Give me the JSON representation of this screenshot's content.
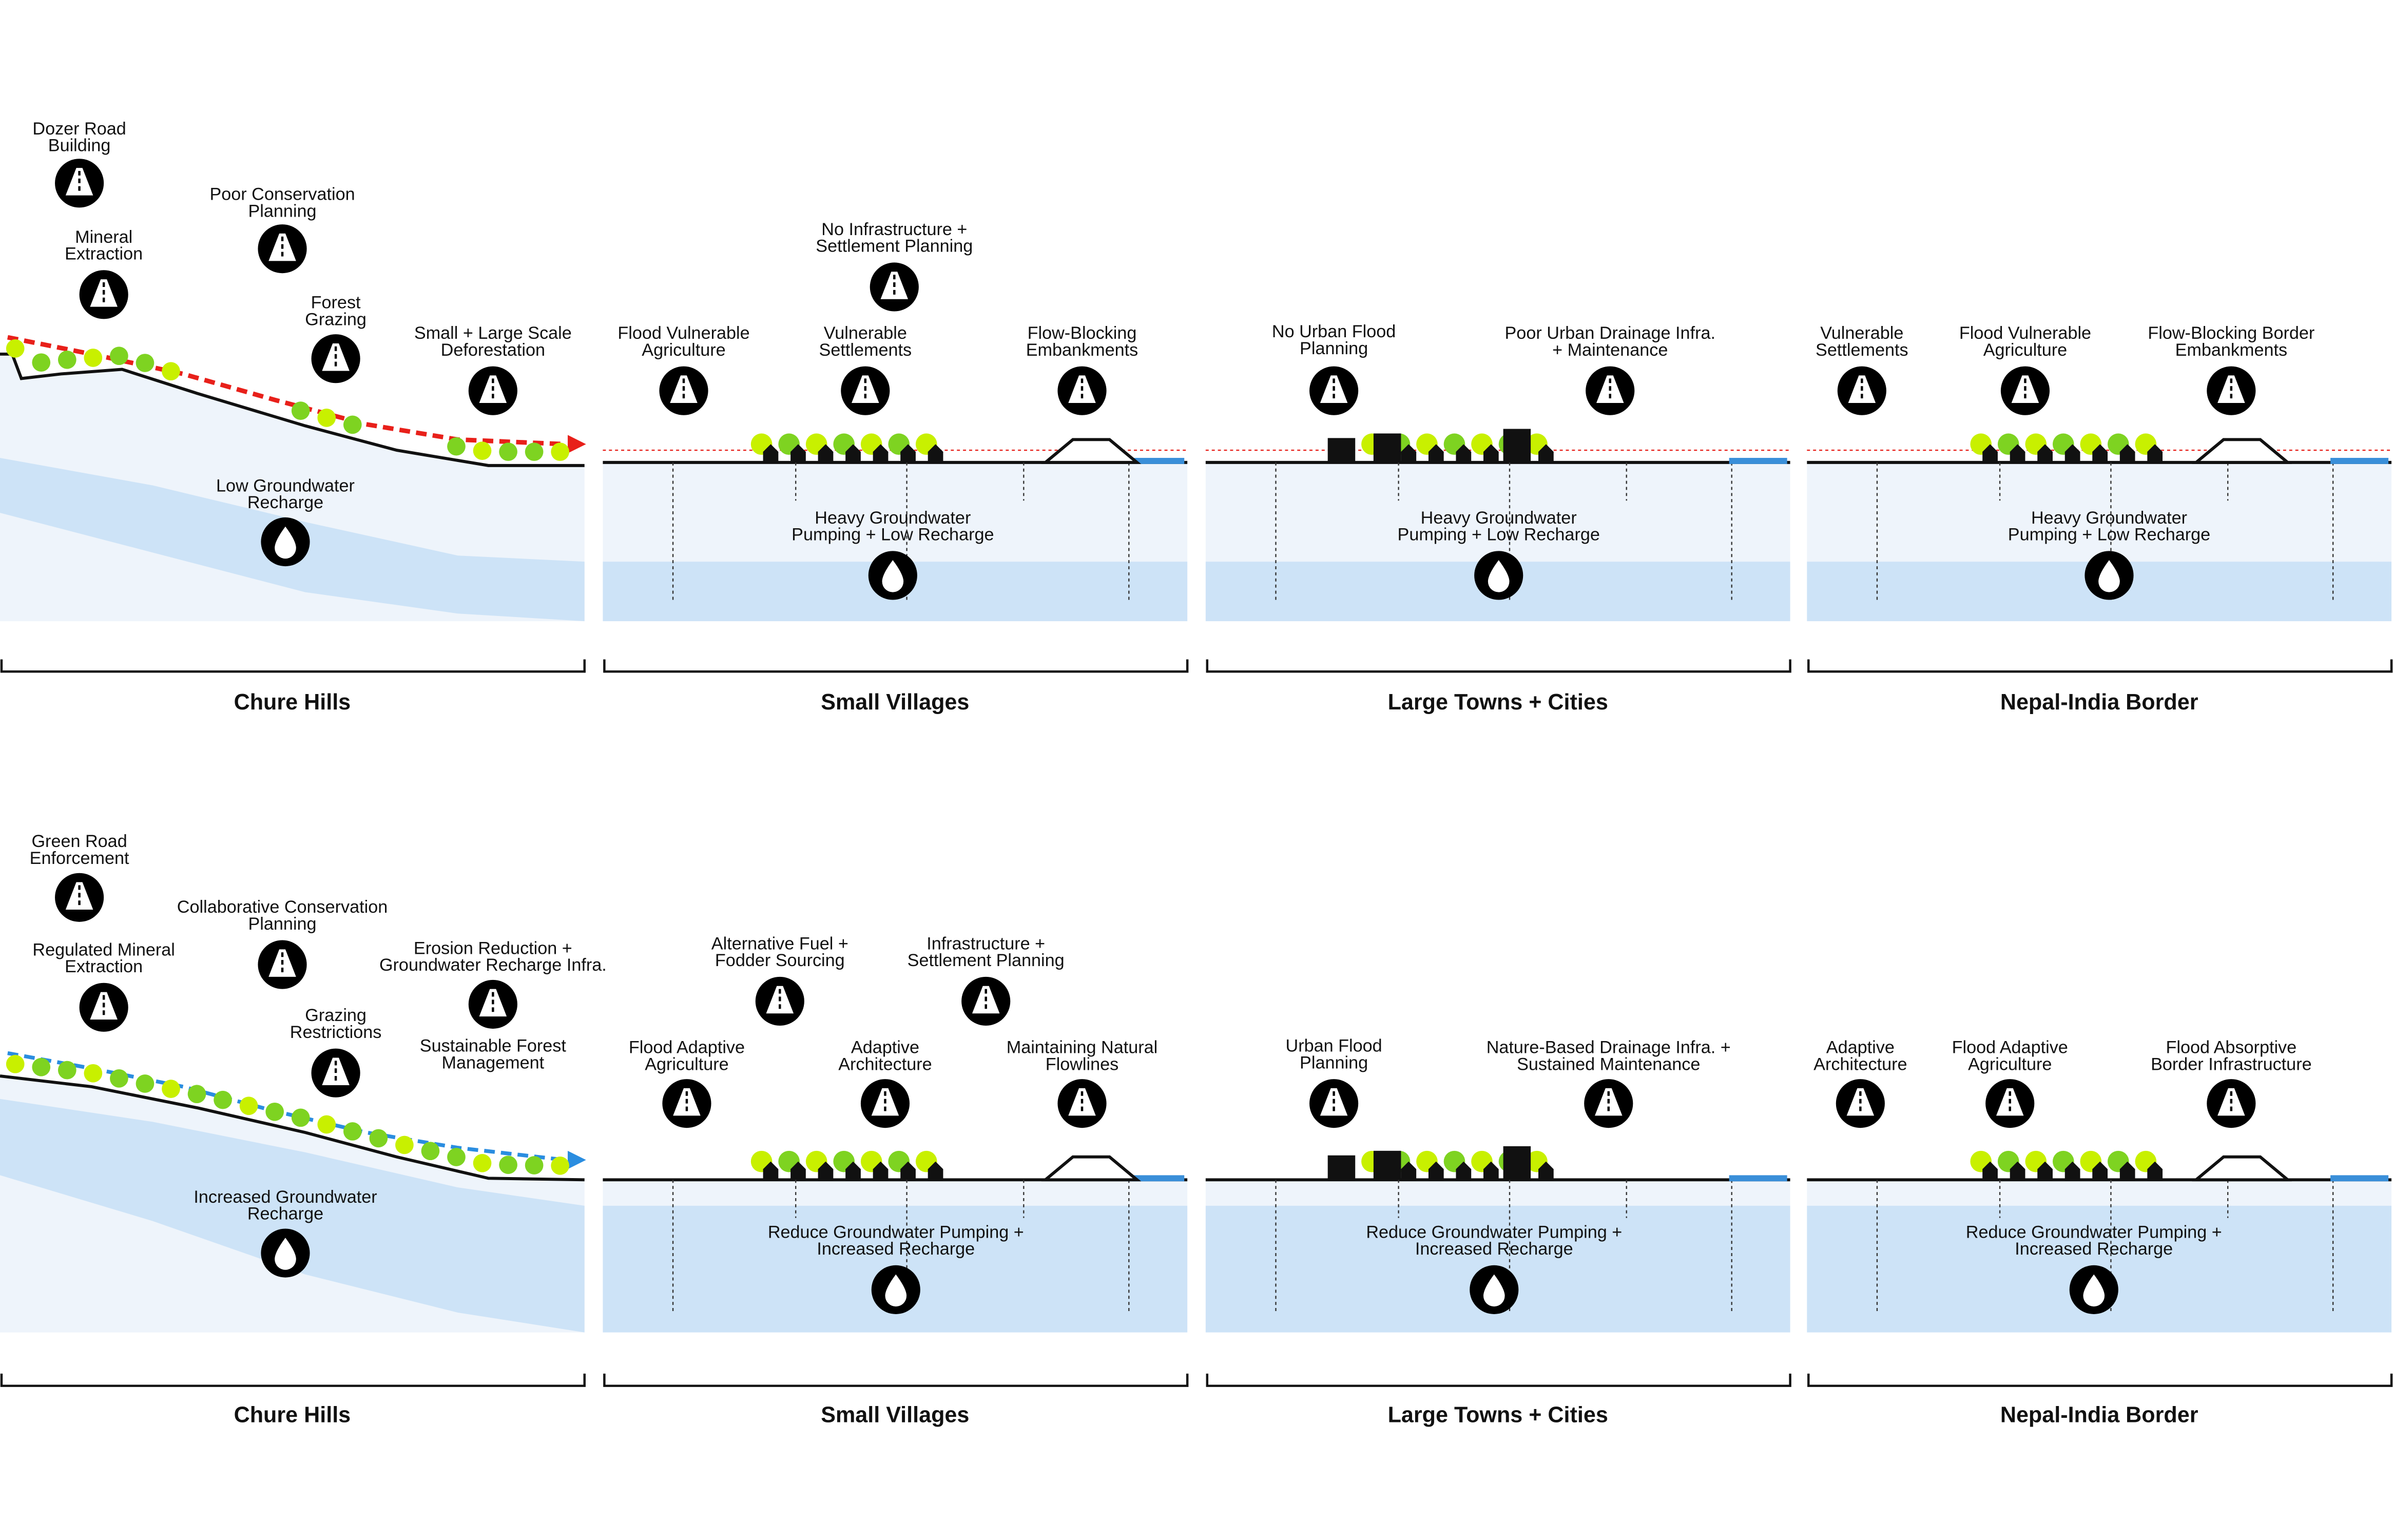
{
  "rows": [
    {
      "panels": [
        {
          "title": "Chure Hills",
          "annotations": [
            [
              "Dozer Road",
              "Building"
            ],
            [
              "Mineral",
              "Extraction"
            ],
            [
              "Poor Conservation",
              "Planning"
            ],
            [
              "Forest",
              "Grazing"
            ],
            [
              "Small + Large Scale",
              "Deforestation"
            ]
          ],
          "groundwater": [
            "Low Groundwater",
            "Recharge"
          ]
        },
        {
          "title": "Small Villages",
          "annotations": [
            [
              "No Infrastructure +",
              "Settlement Planning"
            ],
            [
              "Flood Vulnerable",
              "Agriculture"
            ],
            [
              "Vulnerable",
              "Settlements"
            ],
            [
              "Flow-Blocking",
              "Embankments"
            ]
          ],
          "groundwater": [
            "Heavy Groundwater",
            "Pumping + Low Recharge"
          ]
        },
        {
          "title": "Large Towns + Cities",
          "annotations": [
            [
              "No Urban Flood",
              "Planning"
            ],
            [
              "Poor Urban Drainage Infra.",
              "+ Maintenance"
            ]
          ],
          "groundwater": [
            "Heavy Groundwater",
            "Pumping + Low Recharge"
          ]
        },
        {
          "title": "Nepal-India Border",
          "annotations": [
            [
              "Vulnerable",
              "Settlements"
            ],
            [
              "Flood Vulnerable",
              "Agriculture"
            ],
            [
              "Flow-Blocking Border",
              "Embankments"
            ]
          ],
          "groundwater": [
            "Heavy Groundwater",
            "Pumping + Low Recharge"
          ]
        }
      ]
    },
    {
      "panels": [
        {
          "title": "Chure Hills",
          "annotations": [
            [
              "Green Road",
              "Enforcement"
            ],
            [
              "Regulated Mineral",
              "Extraction"
            ],
            [
              "Collaborative Conservation",
              "Planning"
            ],
            [
              "Grazing",
              "Restrictions"
            ],
            [
              "Erosion Reduction +",
              "Groundwater Recharge Infra."
            ],
            [
              "Sustainable Forest",
              "Management"
            ]
          ],
          "groundwater": [
            "Increased Groundwater",
            "Recharge"
          ]
        },
        {
          "title": "Small Villages",
          "annotations": [
            [
              "Alternative Fuel +",
              "Fodder Sourcing"
            ],
            [
              "Infrastructure +",
              "Settlement Planning"
            ],
            [
              "Flood Adaptive",
              "Agriculture"
            ],
            [
              "Adaptive",
              "Architecture"
            ],
            [
              "Maintaining Natural",
              "Flowlines"
            ]
          ],
          "groundwater": [
            "Reduce Groundwater Pumping +",
            "Increased Recharge"
          ]
        },
        {
          "title": "Large Towns + Cities",
          "annotations": [
            [
              "Urban Flood",
              "Planning"
            ],
            [
              "Nature-Based Drainage Infra. +",
              "Sustained Maintenance"
            ]
          ],
          "groundwater": [
            "Reduce Groundwater Pumping +",
            "Increased Recharge"
          ]
        },
        {
          "title": "Nepal-India Border",
          "annotations": [
            [
              "Adaptive",
              "Architecture"
            ],
            [
              "Flood Adaptive",
              "Agriculture"
            ],
            [
              "Flood Absorptive",
              "Border Infrastructure"
            ]
          ],
          "groundwater": [
            "Reduce Groundwater Pumping +",
            "Increased Recharge"
          ]
        }
      ]
    }
  ]
}
